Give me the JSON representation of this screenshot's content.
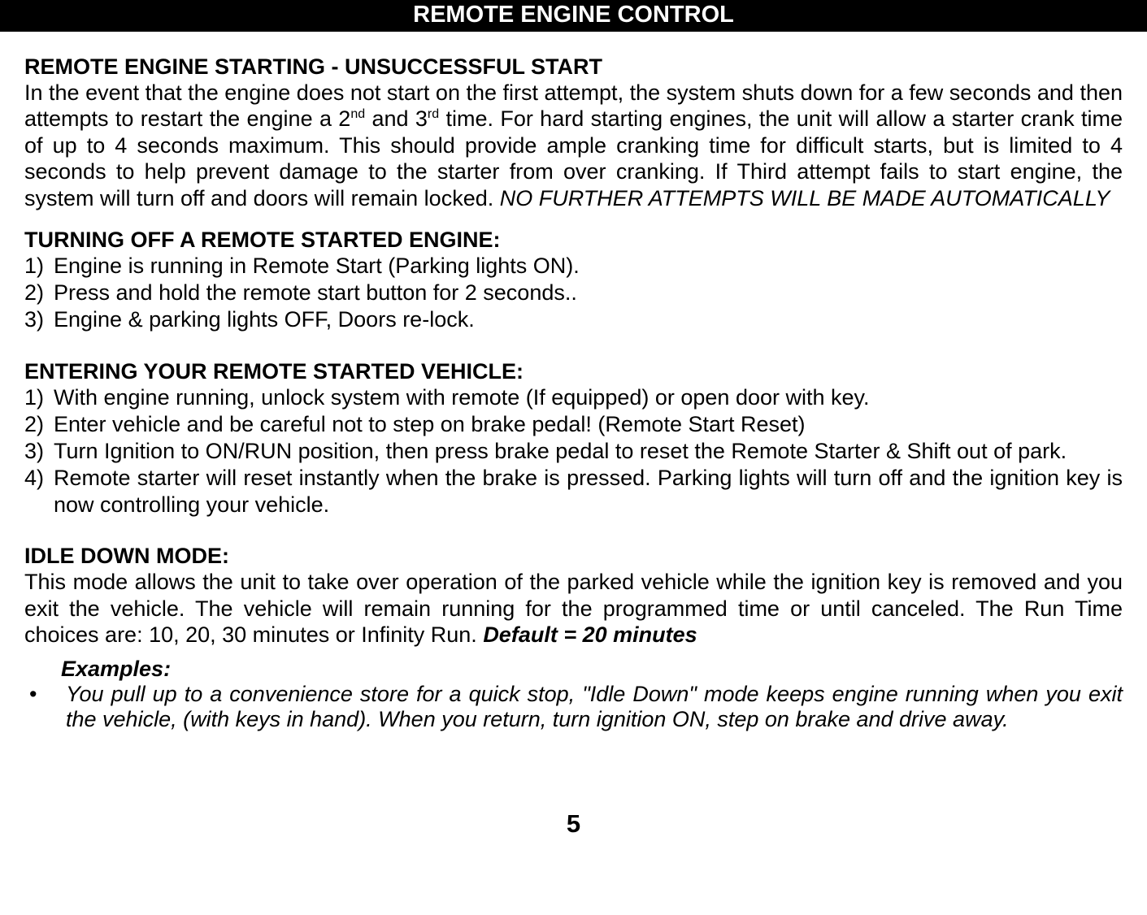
{
  "header": {
    "title": "REMOTE ENGINE CONTROL",
    "bg_color": "#000000",
    "text_color": "#ffffff"
  },
  "section1": {
    "heading": "REMOTE ENGINE STARTING - UNSUCCESSFUL START",
    "body_pre": "In the event that the engine does not start on the first attempt, the system shuts down for a few seconds and then attempts to restart the engine a 2",
    "sup1": "nd",
    "body_mid1": " and 3",
    "sup2": "rd",
    "body_mid2": " time.  For hard starting engines, the unit will allow a starter crank time of up to 4 seconds maximum.  This should provide ample cranking time for difficult starts, but is limited to 4 seconds to help prevent damage to the starter from over cranking. If Third attempt fails to start engine, the system will turn off and doors will remain locked.  ",
    "body_italic": "NO FURTHER ATTEMPTS WILL BE MADE AUTOMATICALLY"
  },
  "section2": {
    "heading": "TURNING OFF A REMOTE STARTED ENGINE:",
    "items": [
      "Engine is running in Remote Start (Parking lights ON).",
      "Press and hold the remote start button for 2 seconds..",
      "Engine & parking lights OFF, Doors re-lock."
    ]
  },
  "section3": {
    "heading": "ENTERING YOUR REMOTE STARTED VEHICLE:",
    "items": [
      "With engine running, unlock system with remote (If equipped) or open door with key.",
      "Enter vehicle and be careful not to step on brake pedal!  (Remote Start Reset)",
      "Turn Ignition to ON/RUN position, then press brake pedal to reset the Remote Starter & Shift out of park.",
      "Remote starter will reset instantly when the brake is pressed.  Parking lights will turn off and the ignition key is now controlling your vehicle."
    ]
  },
  "section4": {
    "heading": "IDLE DOWN MODE:",
    "body": "This mode allows the unit to take over operation of the parked vehicle while the ignition key is removed and you exit the vehicle. The vehicle will remain running for the programmed time or until canceled. The Run Time choices are: 10, 20, 30 minutes or Infinity Run. ",
    "default_label": "Default = 20 minutes",
    "examples_label": "Examples:",
    "bullet": "You pull up to a convenience store for a quick stop, \"Idle Down\" mode keeps engine running when you exit the vehicle, (with keys in hand). When you return, turn ignition ON, step on brake and drive away."
  },
  "page_number": "5",
  "list_markers": {
    "n1": "1)",
    "n2": "2)",
    "n3": "3)",
    "n4": "4)",
    "bullet": "•"
  }
}
